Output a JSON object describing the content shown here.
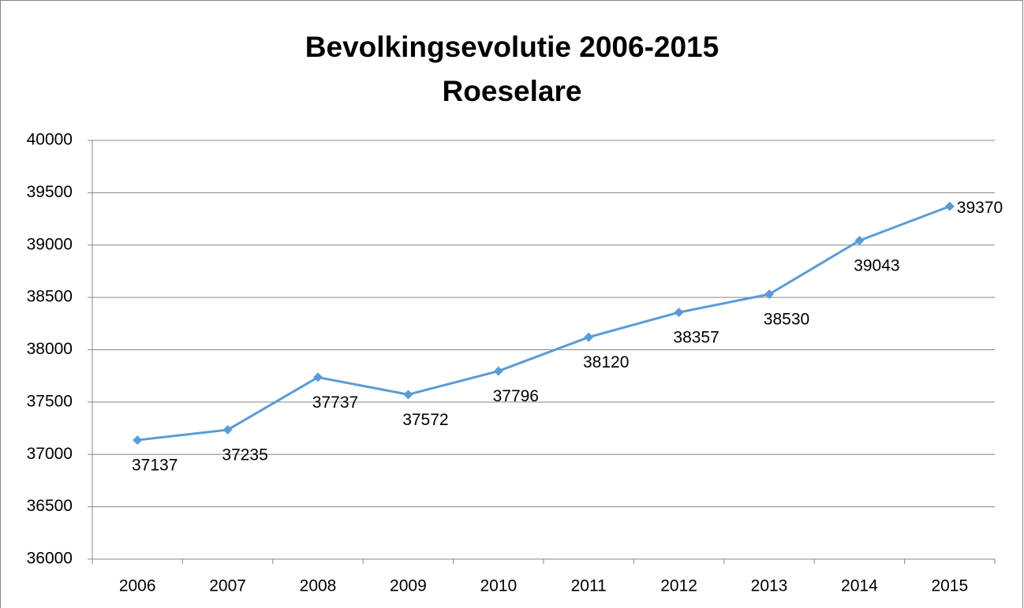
{
  "chart_data": {
    "type": "line",
    "title": "Bevolkingsevolutie 2006-2015",
    "subtitle": "Roeselare",
    "categories": [
      "2006",
      "2007",
      "2008",
      "2009",
      "2010",
      "2011",
      "2012",
      "2013",
      "2014",
      "2015"
    ],
    "series": [
      {
        "name": "Roeselare",
        "color": "#5b9bd5",
        "values": [
          37137,
          37235,
          37737,
          37572,
          37796,
          38120,
          38357,
          38530,
          39043,
          39370
        ]
      }
    ],
    "ylim": [
      36000,
      40000
    ],
    "yticks": [
      36000,
      36500,
      37000,
      37500,
      38000,
      38500,
      39000,
      39500,
      40000
    ],
    "grid": true
  }
}
